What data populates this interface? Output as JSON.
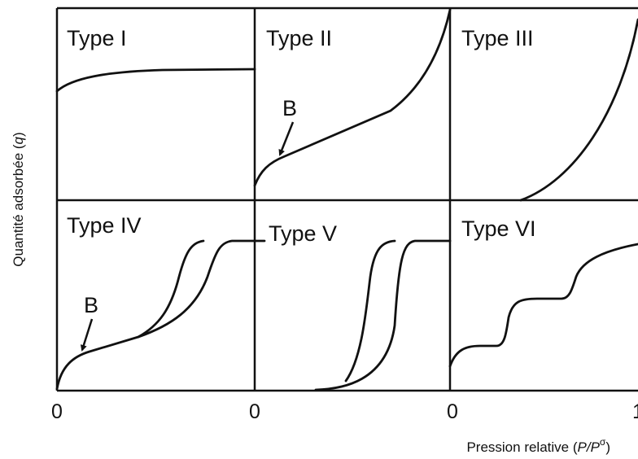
{
  "panels": [
    {
      "label": "Type I"
    },
    {
      "label": "Type II",
      "annotation": "B"
    },
    {
      "label": "Type III"
    },
    {
      "label": "Type IV",
      "annotation": "B"
    },
    {
      "label": "Type V"
    },
    {
      "label": "Type VI"
    }
  ],
  "x_tick_labels": [
    "0",
    "0",
    "0",
    "1"
  ],
  "y_axis_label": {
    "text": "Quantité adsorbée (",
    "symbol": "q",
    "close": ")"
  },
  "x_axis_label": {
    "text": "Pression relative (",
    "symbol": "P/P",
    "superscript": "σ",
    "close": ")"
  }
}
